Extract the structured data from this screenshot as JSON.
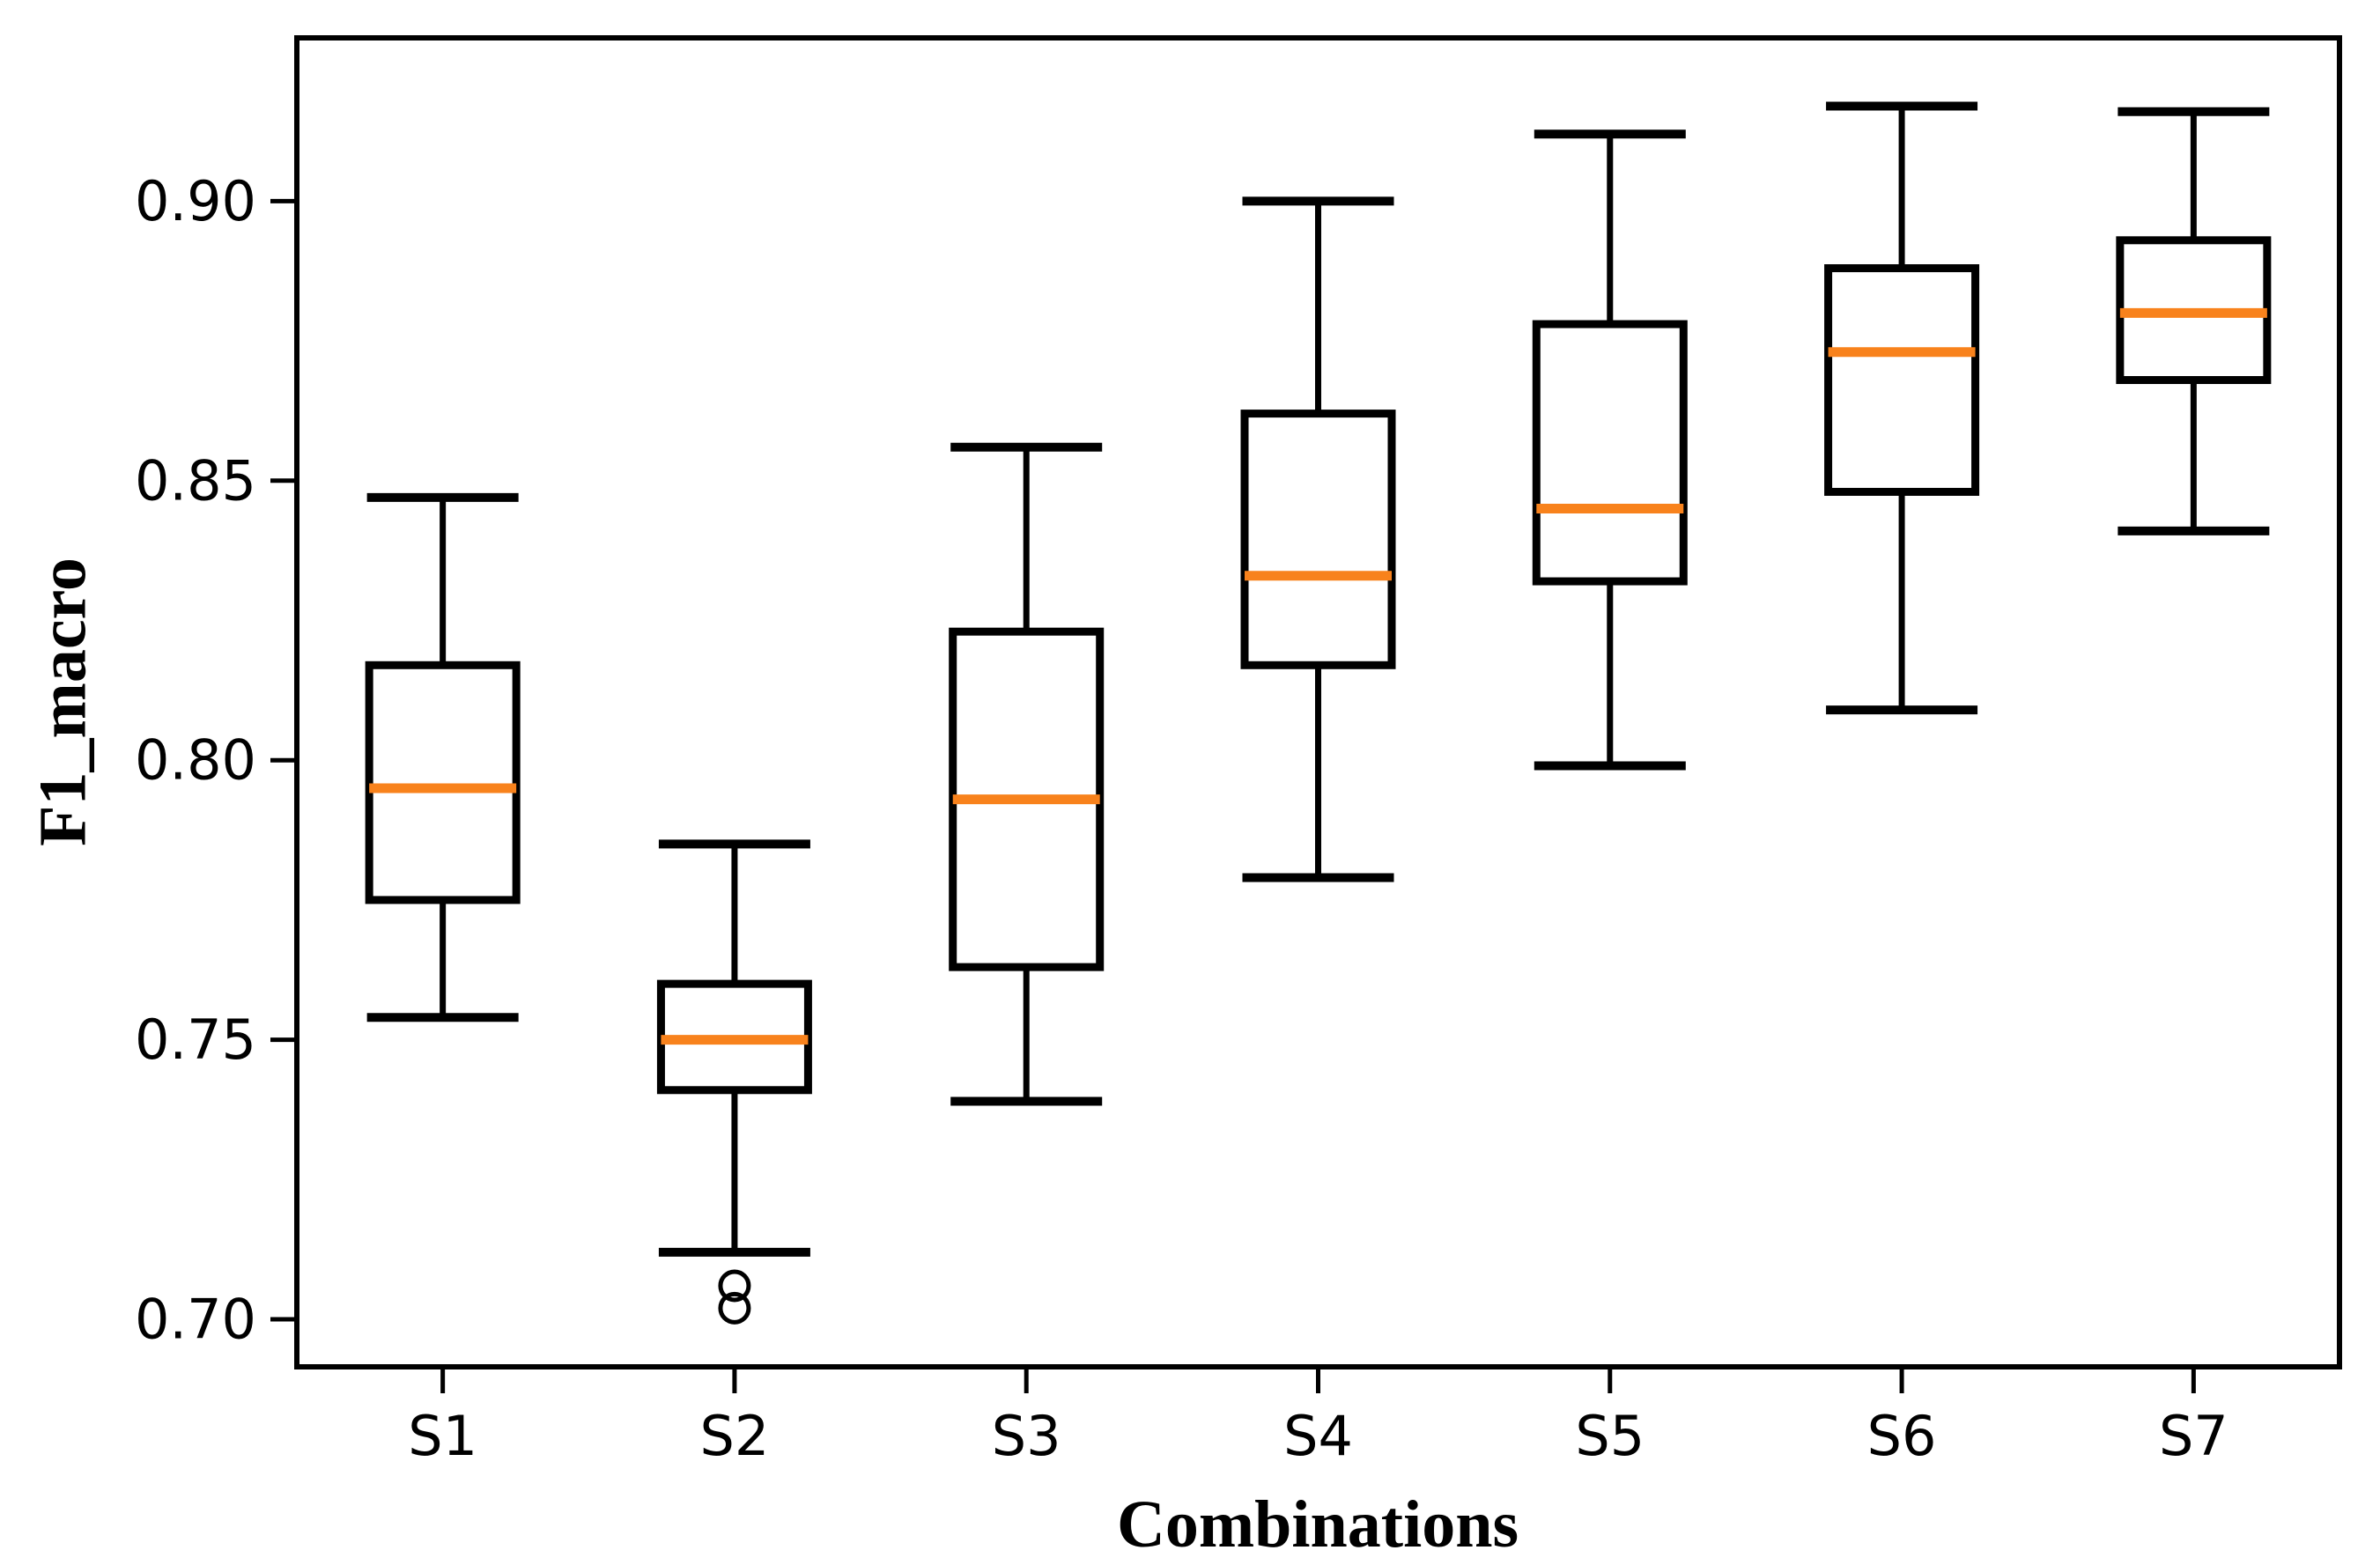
{
  "figure": {
    "background_color": "#ffffff",
    "frame_color": "#000000"
  },
  "chart_data": {
    "type": "box",
    "title": "",
    "xlabel": "Combinations",
    "ylabel": "F1_macro",
    "categories": [
      "S1",
      "S2",
      "S3",
      "S4",
      "S5",
      "S6",
      "S7"
    ],
    "ylim": [
      0.6915,
      0.9292
    ],
    "yticks": [
      0.7,
      0.75,
      0.8,
      0.85,
      0.9
    ],
    "ytick_format_decimals": 2,
    "grid": false,
    "legend": "none",
    "boxes": [
      {
        "label": "S1",
        "whislo": 0.754,
        "q1": 0.775,
        "med": 0.795,
        "q3": 0.817,
        "whishi": 0.847,
        "fliers": []
      },
      {
        "label": "S2",
        "whislo": 0.712,
        "q1": 0.741,
        "med": 0.75,
        "q3": 0.76,
        "whishi": 0.785,
        "fliers": [
          0.706,
          0.702
        ]
      },
      {
        "label": "S3",
        "whislo": 0.739,
        "q1": 0.763,
        "med": 0.793,
        "q3": 0.823,
        "whishi": 0.856,
        "fliers": []
      },
      {
        "label": "S4",
        "whislo": 0.779,
        "q1": 0.817,
        "med": 0.833,
        "q3": 0.862,
        "whishi": 0.9,
        "fliers": []
      },
      {
        "label": "S5",
        "whislo": 0.799,
        "q1": 0.832,
        "med": 0.845,
        "q3": 0.878,
        "whishi": 0.912,
        "fliers": []
      },
      {
        "label": "S6",
        "whislo": 0.809,
        "q1": 0.848,
        "med": 0.873,
        "q3": 0.888,
        "whishi": 0.917,
        "fliers": []
      },
      {
        "label": "S7",
        "whislo": 0.841,
        "q1": 0.868,
        "med": 0.88,
        "q3": 0.893,
        "whishi": 0.916,
        "fliers": []
      }
    ],
    "colors": {
      "median": "#f8821c",
      "box_edge": "#000000",
      "box_fill": "#ffffff",
      "whisker": "#000000",
      "flier_edge": "#000000",
      "axis": "#000000",
      "tick_label": "#000000"
    }
  }
}
